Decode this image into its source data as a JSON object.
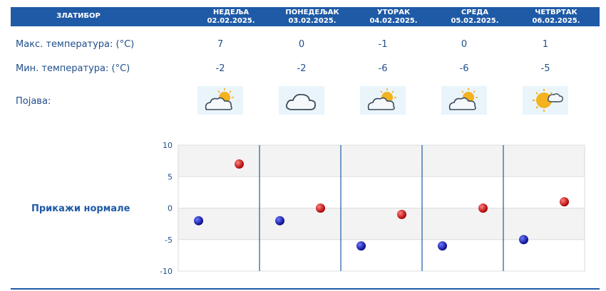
{
  "location": "ЗЛАТИБОР",
  "days": [
    {
      "name": "НЕДЕЉА",
      "date": "02.02.2025.",
      "max": "7",
      "min": "-2",
      "icon": "cloud-sun-icon"
    },
    {
      "name": "ПОНЕДЕЉАК",
      "date": "03.02.2025.",
      "max": "0",
      "min": "-2",
      "icon": "cloud-icon"
    },
    {
      "name": "УТОРАК",
      "date": "04.02.2025.",
      "max": "-1",
      "min": "-6",
      "icon": "cloud-sun-icon"
    },
    {
      "name": "СРЕДА",
      "date": "05.02.2025.",
      "max": "0",
      "min": "-6",
      "icon": "cloud-sun-icon"
    },
    {
      "name": "ЧЕТВРТАК",
      "date": "06.02.2025.",
      "max": "1",
      "min": "-5",
      "icon": "sun-cloud-icon"
    }
  ],
  "labels": {
    "max_temp": "Макс. температура: (°C)",
    "min_temp": "Мин. температура: (°C)",
    "phenomenon": "Појава:"
  },
  "show_normals": "Прикажи нормале",
  "colors": {
    "header": "#1f5aa6",
    "text": "#1f4e8a",
    "max_marker": "#cc0000",
    "min_marker": "#1a1aa8"
  },
  "chart_data": {
    "type": "scatter",
    "categories": [
      "02.02.2025.",
      "03.02.2025.",
      "04.02.2025.",
      "05.02.2025.",
      "06.02.2025."
    ],
    "series": [
      {
        "values": [
          -2,
          -2,
          -6,
          -6,
          -5
        ],
        "color": "#1a1aa8"
      },
      {
        "values": [
          7,
          0,
          -1,
          0,
          1
        ],
        "color": "#cc0000"
      }
    ],
    "yticks": [
      "10",
      "5",
      "0",
      "-5",
      "-10"
    ],
    "ylim": [
      -10,
      10
    ],
    "grid": true
  }
}
